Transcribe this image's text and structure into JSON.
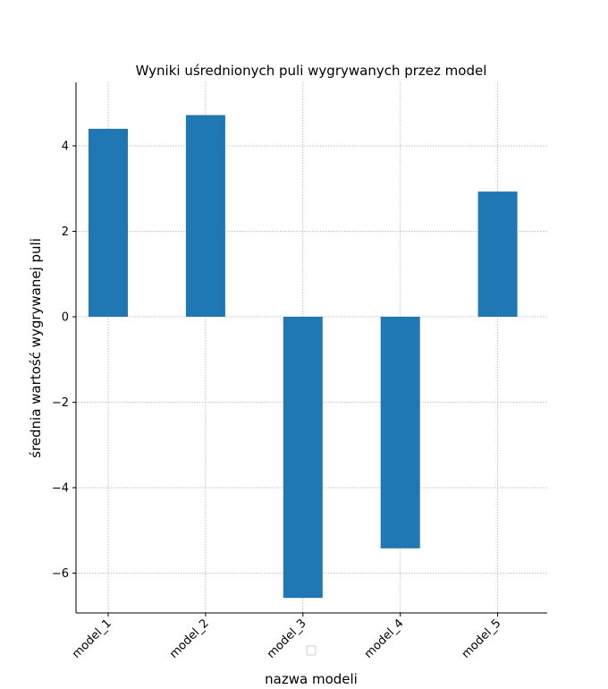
{
  "chart_data": {
    "type": "bar",
    "title": "Wyniki uśrednionych puli wygrywanych przez model",
    "xlabel": "nazwa modeli",
    "ylabel": "średnia wartość wygrywanej puli",
    "categories": [
      "model_1",
      "model_2",
      "model_3",
      "model_4",
      "model_5"
    ],
    "values": [
      4.4,
      4.72,
      -6.58,
      -5.42,
      2.93
    ],
    "ylim": [
      -6.9,
      5.5
    ],
    "yticks": [
      -6,
      -4,
      -2,
      0,
      2,
      4
    ],
    "ytick_labels": [
      "−6",
      "−4",
      "−2",
      "0",
      "2",
      "4"
    ],
    "grid": true,
    "bar_color": "#1f77b4",
    "grid_color": "#b0b0b0",
    "legend": "empty-bottom-center"
  }
}
